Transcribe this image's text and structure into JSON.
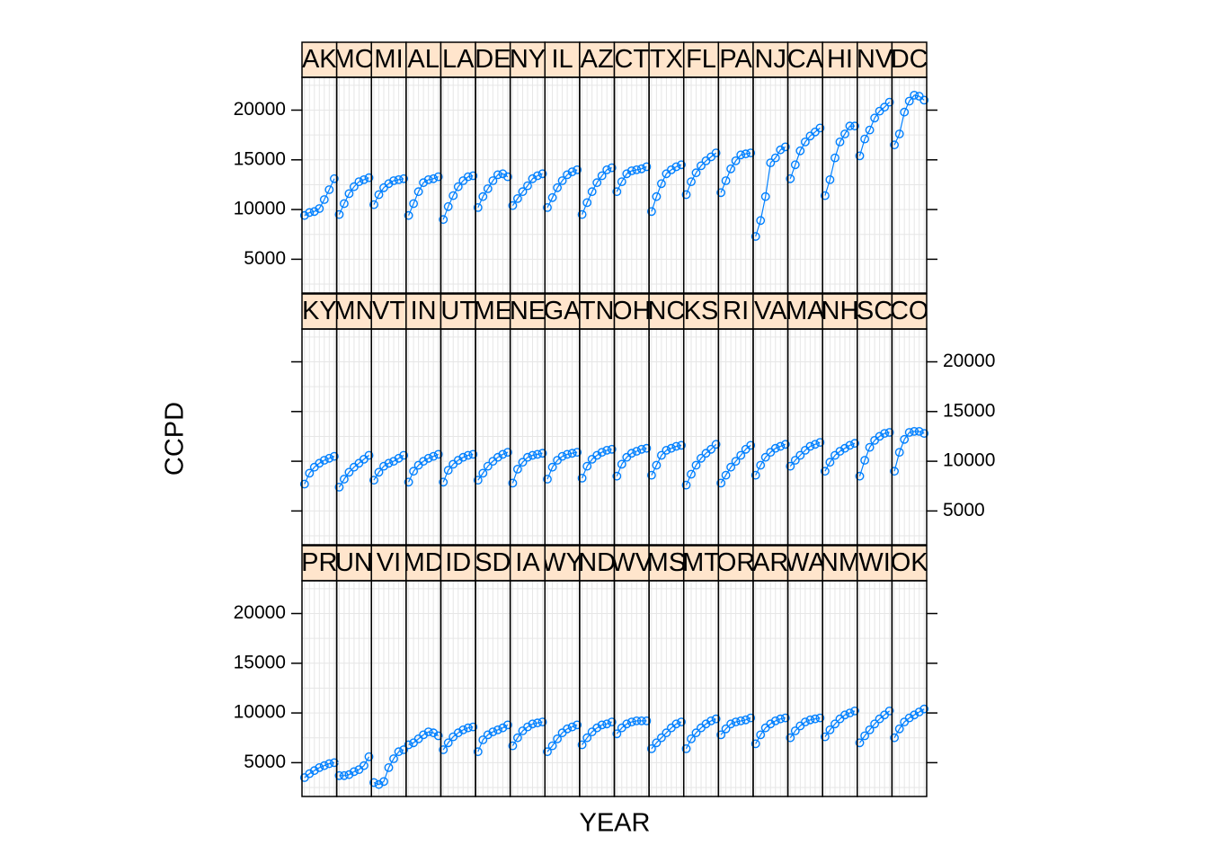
{
  "chart_data": {
    "type": "line",
    "xlabel": "YEAR",
    "ylabel": "CCPD",
    "ylim": [
      1600,
      23300
    ],
    "yticks": [
      5000,
      10000,
      15000,
      20000
    ],
    "grid": true,
    "colors": {
      "series": "#0080ff",
      "strip_bg": "#ffe5cc",
      "grid": "#e6e6e6"
    },
    "rows": [
      {
        "panels": [
          {
            "state": "AK",
            "values": [
              9400,
              9700,
              9800,
              10100,
              11000,
              12000,
              13100
            ]
          },
          {
            "state": "MO",
            "values": [
              9500,
              10600,
              11600,
              12300,
              12800,
              13000,
              13200
            ]
          },
          {
            "state": "MI",
            "values": [
              10500,
              11500,
              12200,
              12600,
              12900,
              13000,
              13100
            ]
          },
          {
            "state": "AL",
            "values": [
              9400,
              10600,
              11800,
              12700,
              13000,
              13100,
              13300
            ]
          },
          {
            "state": "LA",
            "values": [
              9000,
              10300,
              11400,
              12300,
              12900,
              13300,
              13400
            ]
          },
          {
            "state": "DE",
            "values": [
              10200,
              11300,
              12100,
              12900,
              13500,
              13600,
              13300
            ]
          },
          {
            "state": "NY",
            "values": [
              10400,
              11100,
              11800,
              12400,
              13100,
              13400,
              13600
            ]
          },
          {
            "state": "IL",
            "values": [
              10200,
              11200,
              12200,
              12900,
              13500,
              13800,
              14000
            ]
          },
          {
            "state": "AZ",
            "values": [
              9500,
              10700,
              11800,
              12700,
              13400,
              14000,
              14200
            ]
          },
          {
            "state": "CT",
            "values": [
              11800,
              12800,
              13600,
              13900,
              14000,
              14100,
              14300
            ]
          },
          {
            "state": "TX",
            "values": [
              9800,
              11300,
              12600,
              13600,
              14000,
              14300,
              14500
            ]
          },
          {
            "state": "FL",
            "values": [
              11500,
              12800,
              13700,
              14400,
              14900,
              15300,
              15700
            ]
          },
          {
            "state": "PA",
            "values": [
              11700,
              12900,
              14100,
              14900,
              15500,
              15600,
              15700
            ]
          },
          {
            "state": "NJ",
            "values": [
              7300,
              8900,
              11300,
              14700,
              15200,
              16000,
              16300
            ]
          },
          {
            "state": "CA",
            "values": [
              13100,
              14500,
              15900,
              16800,
              17400,
              17800,
              18200
            ]
          },
          {
            "state": "HI",
            "values": [
              11400,
              13000,
              15200,
              16800,
              17600,
              18400,
              18400
            ]
          },
          {
            "state": "NV",
            "values": [
              15400,
              17100,
              18000,
              19200,
              19900,
              20300,
              20800
            ]
          },
          {
            "state": "DC",
            "values": [
              16500,
              17600,
              19800,
              20900,
              21500,
              21400,
              21000
            ]
          }
        ]
      },
      {
        "panels": [
          {
            "state": "KY",
            "values": [
              7700,
              8800,
              9400,
              9800,
              10100,
              10300,
              10500
            ]
          },
          {
            "state": "MN",
            "values": [
              7400,
              8200,
              8900,
              9400,
              9800,
              10200,
              10600
            ]
          },
          {
            "state": "VT",
            "values": [
              8100,
              8900,
              9500,
              9800,
              10000,
              10300,
              10600
            ]
          },
          {
            "state": "IN",
            "values": [
              7900,
              9000,
              9600,
              10000,
              10300,
              10500,
              10700
            ]
          },
          {
            "state": "UT",
            "values": [
              7900,
              9100,
              9700,
              10100,
              10400,
              10600,
              10700
            ]
          },
          {
            "state": "ME",
            "values": [
              8100,
              8800,
              9500,
              10000,
              10400,
              10700,
              10900
            ]
          },
          {
            "state": "NE",
            "values": [
              7800,
              9200,
              9900,
              10400,
              10600,
              10700,
              10800
            ]
          },
          {
            "state": "GA",
            "values": [
              8200,
              9400,
              10100,
              10500,
              10700,
              10800,
              10900
            ]
          },
          {
            "state": "TN",
            "values": [
              8300,
              9500,
              10200,
              10600,
              10900,
              11100,
              11200
            ]
          },
          {
            "state": "OH",
            "values": [
              8500,
              9700,
              10400,
              10800,
              11000,
              11200,
              11300
            ]
          },
          {
            "state": "NC",
            "values": [
              8600,
              9600,
              10600,
              11100,
              11300,
              11500,
              11600
            ]
          },
          {
            "state": "KS",
            "values": [
              7600,
              8700,
              9600,
              10300,
              10800,
              11200,
              11700
            ]
          },
          {
            "state": "RI",
            "values": [
              7800,
              8600,
              9400,
              10000,
              10600,
              11200,
              11600
            ]
          },
          {
            "state": "VA",
            "values": [
              8600,
              9600,
              10400,
              10900,
              11300,
              11500,
              11700
            ]
          },
          {
            "state": "MA",
            "values": [
              9500,
              10100,
              10600,
              11100,
              11500,
              11700,
              11900
            ]
          },
          {
            "state": "NH",
            "values": [
              9000,
              9900,
              10600,
              11000,
              11300,
              11600,
              11800
            ]
          },
          {
            "state": "SC",
            "values": [
              8500,
              10100,
              11400,
              12100,
              12500,
              12800,
              12900
            ]
          },
          {
            "state": "CO",
            "values": [
              9000,
              10900,
              12200,
              12900,
              13000,
              13000,
              12800
            ]
          }
        ]
      },
      {
        "panels": [
          {
            "state": "PR",
            "values": [
              3500,
              3900,
              4200,
              4500,
              4700,
              4900,
              5000
            ]
          },
          {
            "state": "UN",
            "values": [
              3700,
              3700,
              3800,
              4100,
              4300,
              4700,
              5600
            ]
          },
          {
            "state": "VI",
            "values": [
              3000,
              2800,
              3100,
              4500,
              5400,
              6100,
              6300
            ]
          },
          {
            "state": "MD",
            "values": [
              6800,
              7000,
              7400,
              7800,
              8100,
              8000,
              7700
            ]
          },
          {
            "state": "ID",
            "values": [
              6300,
              7000,
              7600,
              8000,
              8300,
              8500,
              8600
            ]
          },
          {
            "state": "SD",
            "values": [
              6100,
              7300,
              7800,
              8100,
              8300,
              8500,
              8800
            ]
          },
          {
            "state": "IA",
            "values": [
              6700,
              7500,
              8200,
              8600,
              8900,
              9000,
              9100
            ]
          },
          {
            "state": "WY",
            "values": [
              6100,
              6700,
              7400,
              8000,
              8400,
              8600,
              8800
            ]
          },
          {
            "state": "ND",
            "values": [
              6800,
              7500,
              8100,
              8500,
              8800,
              8900,
              9100
            ]
          },
          {
            "state": "WV",
            "values": [
              7900,
              8500,
              8900,
              9100,
              9200,
              9200,
              9200
            ]
          },
          {
            "state": "MS",
            "values": [
              6400,
              7000,
              7500,
              8000,
              8500,
              8900,
              9100
            ]
          },
          {
            "state": "MT",
            "values": [
              6400,
              7400,
              8000,
              8500,
              8900,
              9200,
              9400
            ]
          },
          {
            "state": "OR",
            "values": [
              7800,
              8400,
              8900,
              9100,
              9200,
              9300,
              9500
            ]
          },
          {
            "state": "AR",
            "values": [
              6900,
              7800,
              8500,
              8900,
              9200,
              9400,
              9500
            ]
          },
          {
            "state": "WA",
            "values": [
              7500,
              8200,
              8700,
              9100,
              9300,
              9400,
              9500
            ]
          },
          {
            "state": "NM",
            "values": [
              7600,
              8300,
              8900,
              9400,
              9800,
              10000,
              10200
            ]
          },
          {
            "state": "WI",
            "values": [
              7000,
              7700,
              8300,
              8900,
              9400,
              9800,
              10200
            ]
          },
          {
            "state": "OK",
            "values": [
              7500,
              8400,
              9100,
              9500,
              9800,
              10100,
              10400
            ]
          }
        ]
      }
    ]
  }
}
